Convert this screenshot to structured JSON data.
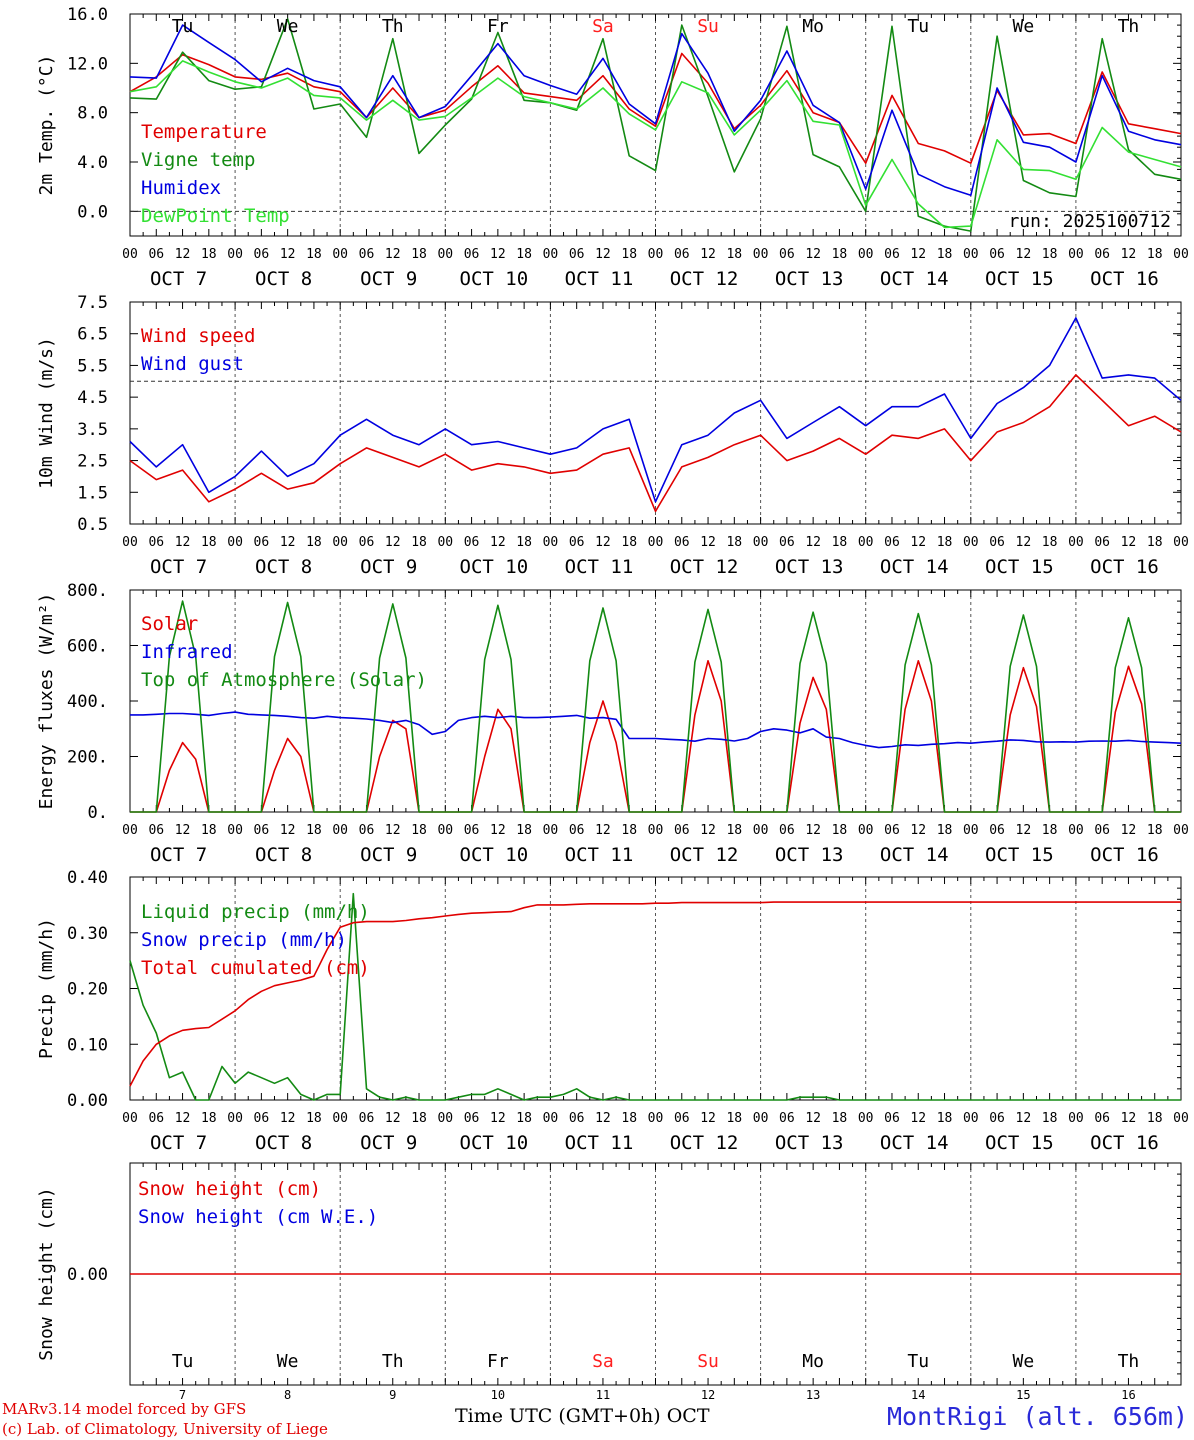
{
  "footer": {
    "credit_line_1": "MARv3.14 model forced by GFS",
    "credit_line_2": "(c) Lab. of Climatology, University of Liege",
    "x_label": "Time UTC (GMT+0h) OCT",
    "station": "MontRigi (alt. 656m)"
  },
  "colors": {
    "red": "#e00000",
    "green": "#138a13",
    "blue": "#0000e0",
    "lightgreen": "#33e033",
    "weekend": "#ff2020"
  },
  "chart_data": [
    {
      "id": "temp",
      "type": "line",
      "ylabel": "2m Temp. (°C)",
      "ylim": [
        -2,
        16
      ],
      "yticks": [
        16,
        12,
        8,
        4,
        0
      ],
      "ytick_labels": [
        "16.0",
        "12.0",
        "8.0",
        "4.0",
        "0.0"
      ],
      "ref_line": 0,
      "days": [
        "Tu",
        "We",
        "Th",
        "Fr",
        "Sa",
        "Su",
        "Mo",
        "Tu",
        "We",
        "Th"
      ],
      "run_label": "run: 2025100712",
      "x_hours": [
        0,
        6,
        12,
        18,
        24,
        30,
        36,
        42,
        48,
        54,
        60,
        66,
        72,
        78,
        84,
        90,
        96,
        102,
        108,
        114,
        120,
        126,
        132,
        138,
        144,
        150,
        156,
        162,
        168,
        174,
        180,
        186,
        192,
        198,
        204,
        210,
        216,
        222,
        228,
        234,
        240
      ],
      "series": [
        {
          "name": "Temperature",
          "color": "red",
          "values": [
            9.7,
            10.9,
            12.7,
            11.9,
            10.9,
            10.7,
            11.2,
            10.1,
            9.7,
            7.6,
            10.0,
            7.6,
            8.2,
            10.1,
            11.8,
            9.6,
            9.3,
            9.0,
            11.0,
            8.3,
            6.9,
            12.8,
            10.4,
            6.7,
            8.6,
            11.4,
            8.0,
            7.2,
            3.9,
            9.4,
            5.5,
            4.9,
            3.9,
            9.8,
            6.2,
            6.3,
            5.5,
            11.3,
            7.1,
            6.7,
            6.3
          ]
        },
        {
          "name": "Vigne temp",
          "color": "green",
          "values": [
            9.2,
            9.1,
            12.9,
            10.6,
            9.9,
            10.1,
            15.6,
            8.3,
            8.7,
            6.0,
            14.0,
            4.7,
            7.0,
            9.1,
            14.5,
            9.0,
            8.8,
            8.2,
            14.0,
            4.5,
            3.3,
            15.1,
            9.3,
            3.2,
            7.5,
            15.0,
            4.6,
            3.6,
            0.0,
            15.0,
            -0.4,
            -1.2,
            -1.6,
            14.2,
            2.5,
            1.5,
            1.2,
            14.0,
            5.0,
            3.0,
            2.6
          ]
        },
        {
          "name": "Humidex",
          "color": "blue",
          "values": [
            10.9,
            10.8,
            15.1,
            13.7,
            12.3,
            10.5,
            11.6,
            10.6,
            10.1,
            7.6,
            11.0,
            7.6,
            8.5,
            11.0,
            13.6,
            11.0,
            10.2,
            9.5,
            12.4,
            8.7,
            7.1,
            14.4,
            11.2,
            6.5,
            9.0,
            13.0,
            8.6,
            7.2,
            1.8,
            8.2,
            3.0,
            2.0,
            1.3,
            10.0,
            5.6,
            5.2,
            4.0,
            11.0,
            6.5,
            5.8,
            5.4
          ]
        },
        {
          "name": "DewPoint Temp",
          "color": "lightgreen",
          "values": [
            9.7,
            10.1,
            12.2,
            11.3,
            10.5,
            10.0,
            10.8,
            9.4,
            9.2,
            7.4,
            9.0,
            7.4,
            7.7,
            9.2,
            10.8,
            9.3,
            8.8,
            8.3,
            10.0,
            7.9,
            6.6,
            10.5,
            9.6,
            6.2,
            8.2,
            10.6,
            7.3,
            7.0,
            0.5,
            4.2,
            0.6,
            -1.3,
            -1.2,
            5.8,
            3.4,
            3.3,
            2.6,
            6.8,
            4.8,
            4.2,
            3.6
          ]
        }
      ]
    },
    {
      "id": "wind",
      "type": "line",
      "ylabel": "10m Wind (m/s)",
      "ylim": [
        0.5,
        7.5
      ],
      "yticks": [
        7.5,
        6.5,
        5.5,
        4.5,
        3.5,
        2.5,
        1.5,
        0.5
      ],
      "ytick_labels": [
        "7.5",
        "6.5",
        "5.5",
        "4.5",
        "3.5",
        "2.5",
        "1.5",
        "0.5"
      ],
      "ref_line": 5.0,
      "x_hours": [
        0,
        6,
        12,
        18,
        24,
        30,
        36,
        42,
        48,
        54,
        60,
        66,
        72,
        78,
        84,
        90,
        96,
        102,
        108,
        114,
        120,
        126,
        132,
        138,
        144,
        150,
        156,
        162,
        168,
        174,
        180,
        186,
        192,
        198,
        204,
        210,
        216,
        222,
        228,
        234,
        240
      ],
      "series": [
        {
          "name": "Wind speed",
          "color": "red",
          "values": [
            2.5,
            1.9,
            2.2,
            1.2,
            1.6,
            2.1,
            1.6,
            1.8,
            2.4,
            2.9,
            2.6,
            2.3,
            2.7,
            2.2,
            2.4,
            2.3,
            2.1,
            2.2,
            2.7,
            2.9,
            0.9,
            2.3,
            2.6,
            3.0,
            3.3,
            2.5,
            2.8,
            3.2,
            2.7,
            3.3,
            3.2,
            3.5,
            2.5,
            3.4,
            3.7,
            4.2,
            5.2,
            4.4,
            3.6,
            3.9,
            3.4
          ]
        },
        {
          "name": "Wind gust",
          "color": "blue",
          "values": [
            3.1,
            2.3,
            3.0,
            1.5,
            2.0,
            2.8,
            2.0,
            2.4,
            3.3,
            3.8,
            3.3,
            3.0,
            3.5,
            3.0,
            3.1,
            2.9,
            2.7,
            2.9,
            3.5,
            3.8,
            1.2,
            3.0,
            3.3,
            4.0,
            4.4,
            3.2,
            3.7,
            4.2,
            3.6,
            4.2,
            4.2,
            4.6,
            3.2,
            4.3,
            4.8,
            5.5,
            7.0,
            5.1,
            5.2,
            5.1,
            4.4
          ]
        }
      ]
    },
    {
      "id": "energy",
      "type": "line",
      "ylabel": "Energy fluxes (W/m²)",
      "ylim": [
        0,
        800
      ],
      "yticks": [
        800,
        600,
        400,
        200,
        0
      ],
      "ytick_labels": [
        "800.",
        "600.",
        "400.",
        "200.",
        "0."
      ],
      "x_hours": [
        0,
        3,
        6,
        9,
        12,
        15,
        18,
        21,
        24,
        27,
        30,
        33,
        36,
        39,
        42,
        45,
        48,
        51,
        54,
        57,
        60,
        63,
        66,
        69,
        72,
        75,
        78,
        81,
        84,
        87,
        90,
        93,
        96,
        99,
        102,
        105,
        108,
        111,
        114,
        117,
        120,
        123,
        126,
        129,
        132,
        135,
        138,
        141,
        144,
        147,
        150,
        153,
        156,
        159,
        162,
        165,
        168,
        171,
        174,
        177,
        180,
        183,
        186,
        189,
        192,
        195,
        198,
        201,
        204,
        207,
        210,
        213,
        216,
        219,
        222,
        225,
        228,
        231,
        234,
        237,
        240
      ],
      "series": [
        {
          "name": "Solar",
          "color": "red",
          "values": [
            0,
            0,
            0,
            150,
            250,
            190,
            0,
            0,
            0,
            0,
            0,
            150,
            265,
            200,
            0,
            0,
            0,
            0,
            0,
            200,
            330,
            300,
            0,
            0,
            0,
            0,
            0,
            200,
            370,
            300,
            0,
            0,
            0,
            0,
            0,
            250,
            400,
            250,
            0,
            0,
            0,
            0,
            0,
            350,
            545,
            400,
            0,
            0,
            0,
            0,
            0,
            320,
            485,
            370,
            0,
            0,
            0,
            0,
            0,
            370,
            545,
            400,
            0,
            0,
            0,
            0,
            0,
            350,
            520,
            380,
            0,
            0,
            0,
            0,
            0,
            360,
            525,
            390,
            0,
            0,
            0
          ]
        },
        {
          "name": "Infrared",
          "color": "blue",
          "values": [
            350,
            350,
            352,
            355,
            355,
            352,
            348,
            355,
            360,
            352,
            350,
            348,
            345,
            340,
            338,
            345,
            340,
            338,
            335,
            330,
            322,
            330,
            315,
            280,
            290,
            330,
            340,
            345,
            340,
            345,
            340,
            340,
            342,
            345,
            348,
            338,
            340,
            334,
            265,
            265,
            265,
            262,
            260,
            255,
            265,
            262,
            256,
            265,
            290,
            300,
            295,
            285,
            300,
            270,
            265,
            250,
            240,
            232,
            236,
            242,
            240,
            244,
            246,
            250,
            248,
            252,
            255,
            260,
            258,
            253,
            252,
            253,
            252,
            255,
            256,
            255,
            258,
            254,
            252,
            250,
            248
          ]
        },
        {
          "name": "Top of Atmosphere (Solar)",
          "color": "green",
          "values": [
            0,
            0,
            0,
            560,
            760,
            560,
            0,
            0,
            0,
            0,
            0,
            560,
            755,
            560,
            0,
            0,
            0,
            0,
            0,
            555,
            750,
            555,
            0,
            0,
            0,
            0,
            0,
            550,
            745,
            550,
            0,
            0,
            0,
            0,
            0,
            545,
            735,
            545,
            0,
            0,
            0,
            0,
            0,
            540,
            730,
            540,
            0,
            0,
            0,
            0,
            0,
            535,
            720,
            535,
            0,
            0,
            0,
            0,
            0,
            530,
            715,
            530,
            0,
            0,
            0,
            0,
            0,
            525,
            710,
            525,
            0,
            0,
            0,
            0,
            0,
            520,
            700,
            520,
            0,
            0,
            0
          ]
        }
      ]
    },
    {
      "id": "precip",
      "type": "line",
      "ylabel": "Precip (mm/h)",
      "ylim": [
        0,
        0.4
      ],
      "yticks": [
        0.4,
        0.3,
        0.2,
        0.1,
        0
      ],
      "ytick_labels": [
        "0.40",
        "0.30",
        "0.20",
        "0.10",
        "0.00"
      ],
      "x_hours": [
        0,
        3,
        6,
        9,
        12,
        15,
        18,
        21,
        24,
        27,
        30,
        33,
        36,
        39,
        42,
        45,
        48,
        51,
        54,
        57,
        60,
        63,
        66,
        69,
        72,
        75,
        78,
        81,
        84,
        87,
        90,
        93,
        96,
        99,
        102,
        105,
        108,
        111,
        114,
        117,
        120,
        123,
        126,
        129,
        132,
        135,
        138,
        141,
        144,
        147,
        150,
        153,
        156,
        159,
        162,
        165,
        168,
        171,
        174,
        177,
        180,
        183,
        186,
        189,
        192,
        195,
        198,
        201,
        204,
        207,
        210,
        213,
        216,
        219,
        222,
        225,
        228,
        231,
        234,
        237,
        240
      ],
      "series": [
        {
          "name": "Liquid precip (mm/h)",
          "color": "green",
          "values": [
            0.25,
            0.17,
            0.12,
            0.04,
            0.05,
            0.0,
            0.0,
            0.06,
            0.03,
            0.05,
            0.04,
            0.03,
            0.04,
            0.01,
            0.0,
            0.01,
            0.01,
            0.37,
            0.02,
            0.005,
            0.0,
            0.005,
            0.0,
            0.0,
            0.0,
            0.005,
            0.01,
            0.01,
            0.02,
            0.01,
            0.0,
            0.005,
            0.005,
            0.01,
            0.02,
            0.005,
            0.0,
            0.005,
            0.0,
            0.0,
            0.0,
            0.0,
            0.0,
            0.0,
            0.0,
            0.0,
            0.0,
            0.0,
            0.0,
            0.0,
            0.0,
            0.005,
            0.005,
            0.005,
            0.0,
            0.0,
            0.0,
            0.0,
            0.0,
            0.0,
            0.0,
            0.0,
            0.0,
            0.0,
            0.0,
            0.0,
            0.0,
            0.0,
            0.0,
            0.0,
            0.0,
            0.0,
            0.0,
            0.0,
            0.0,
            0.0,
            0.0,
            0.0,
            0.0,
            0.0,
            0.0
          ]
        },
        {
          "name": "Snow precip (mm/h)",
          "color": "blue",
          "values": []
        },
        {
          "name": "Total cumulated (cm)",
          "color": "red",
          "values": [
            0.025,
            0.07,
            0.1,
            0.115,
            0.125,
            0.128,
            0.13,
            0.145,
            0.16,
            0.18,
            0.195,
            0.205,
            0.21,
            0.215,
            0.222,
            0.27,
            0.31,
            0.318,
            0.32,
            0.32,
            0.32,
            0.322,
            0.325,
            0.327,
            0.33,
            0.333,
            0.335,
            0.336,
            0.337,
            0.338,
            0.345,
            0.35,
            0.35,
            0.35,
            0.351,
            0.352,
            0.352,
            0.352,
            0.352,
            0.352,
            0.353,
            0.353,
            0.354,
            0.354,
            0.354,
            0.354,
            0.354,
            0.354,
            0.354,
            0.355,
            0.355,
            0.355,
            0.355,
            0.355,
            0.355,
            0.355,
            0.355,
            0.355,
            0.355,
            0.355,
            0.355,
            0.355,
            0.355,
            0.355,
            0.355,
            0.355,
            0.355,
            0.355,
            0.355,
            0.355,
            0.355,
            0.355,
            0.355,
            0.355,
            0.355,
            0.355,
            0.355,
            0.355,
            0.355,
            0.355,
            0.355
          ]
        }
      ]
    },
    {
      "id": "snow",
      "type": "line",
      "ylabel": "Snow height (cm)",
      "ylim": [
        -1,
        1
      ],
      "yticks": [
        0
      ],
      "ytick_labels": [
        "0.00"
      ],
      "days": [
        "Tu",
        "We",
        "Th",
        "Fr",
        "Sa",
        "Su",
        "Mo",
        "Tu",
        "We",
        "Th"
      ],
      "day_numbers": [
        "7",
        "8",
        "9",
        "10",
        "11",
        "12",
        "13",
        "14",
        "15",
        "16"
      ],
      "x_hours": [
        0,
        240
      ],
      "series": [
        {
          "name": "Snow height (cm)",
          "color": "red",
          "values": [
            0,
            0
          ]
        },
        {
          "name": "Snow height (cm W.E.)",
          "color": "blue",
          "values": []
        }
      ]
    }
  ],
  "x_axis": {
    "hour_labels": [
      "00",
      "06",
      "12",
      "18"
    ],
    "final_label": "00",
    "date_labels": [
      "OCT  7",
      "OCT  8",
      "OCT  9",
      "OCT 10",
      "OCT 11",
      "OCT 12",
      "OCT 13",
      "OCT 14",
      "OCT 15",
      "OCT 16"
    ],
    "weekend_days": [
      "Sa",
      "Su"
    ]
  }
}
